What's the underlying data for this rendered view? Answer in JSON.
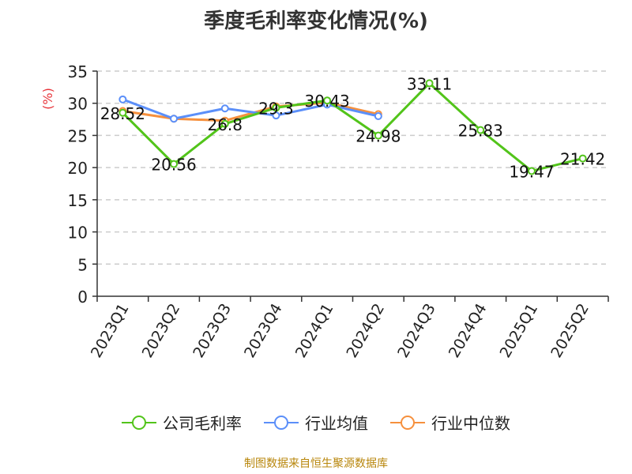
{
  "title": "季度毛利率变化情况(%)",
  "footer": "制图数据来自恒生聚源数据库",
  "colors": {
    "company": "#52c41a",
    "industry_avg": "#5b8ff9",
    "industry_median": "#f6903d",
    "unit": "#e8353b",
    "grid": "#cccccc",
    "axis": "#333333"
  },
  "chart_data": {
    "type": "line",
    "title": "季度毛利率变化情况(%)",
    "ylabel": "(%)",
    "xlabel": "",
    "ylim": [
      0,
      35
    ],
    "yticks": [
      0,
      5,
      10,
      15,
      20,
      25,
      30,
      35
    ],
    "grid": true,
    "legend_position": "bottom",
    "categories": [
      "2023Q1",
      "2023Q2",
      "2023Q3",
      "2023Q4",
      "2024Q1",
      "2024Q2",
      "2024Q3",
      "2024Q4",
      "2025Q1",
      "2025Q2"
    ],
    "series": [
      {
        "name": "公司毛利率",
        "color": "#52c41a",
        "values": [
          28.52,
          20.56,
          26.8,
          29.3,
          30.43,
          24.98,
          33.11,
          25.83,
          19.47,
          21.42
        ],
        "labels": [
          "28.52",
          "20.56",
          "26.8",
          "29.3",
          "30.43",
          "24.98",
          "33.11",
          "25.83",
          "19.47",
          "21.42"
        ]
      },
      {
        "name": "行业均值",
        "color": "#5b8ff9",
        "values": [
          30.6,
          27.6,
          29.2,
          28.1,
          29.8,
          28.0,
          null,
          null,
          null,
          null
        ]
      },
      {
        "name": "行业中位数",
        "color": "#f6903d",
        "values": [
          28.8,
          27.6,
          27.3,
          29.5,
          30.1,
          28.3,
          null,
          null,
          null,
          null
        ]
      }
    ]
  }
}
